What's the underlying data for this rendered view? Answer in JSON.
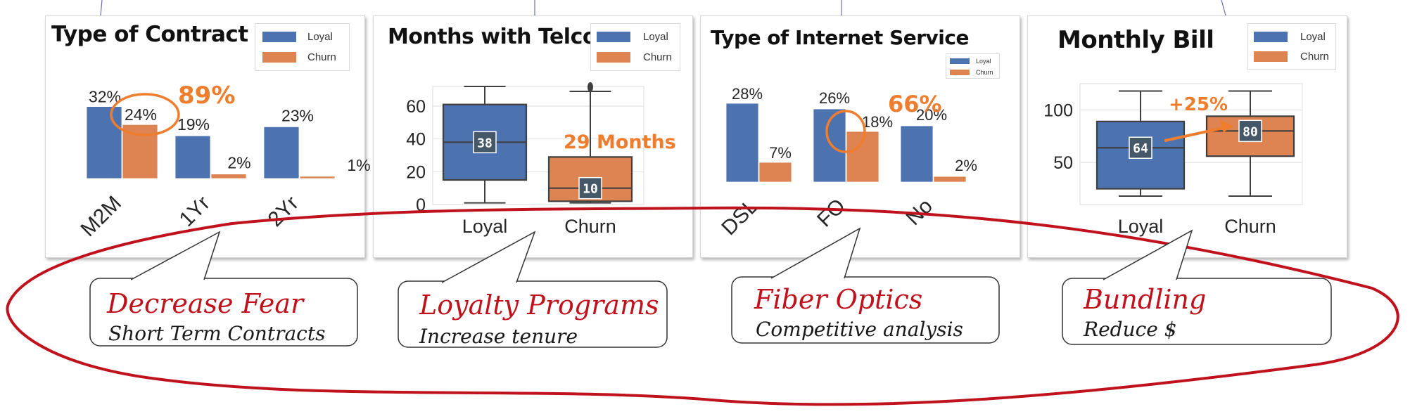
{
  "colors": {
    "loyal": "#4c72b0",
    "churn": "#dd8452",
    "highlight": "#ef7d2e",
    "ellipse": "#c0121c",
    "badge": "#455867"
  },
  "legend": {
    "loyal": "Loyal",
    "churn": "Churn"
  },
  "panels": [
    {
      "title": "Type of Contract"
    },
    {
      "title": "Months with Telco"
    },
    {
      "title": "Type of Internet Service"
    },
    {
      "title": "Monthly Bill"
    }
  ],
  "chart_data": [
    {
      "type": "bar",
      "title": "Type of Contract",
      "categories": [
        "M2M",
        "1Yr",
        "2Yr"
      ],
      "series": [
        {
          "name": "Loyal",
          "values": [
            32,
            19,
            23
          ],
          "labels": [
            "32%",
            "19%",
            "23%"
          ]
        },
        {
          "name": "Churn",
          "values": [
            24,
            2,
            1
          ],
          "labels": [
            "24%",
            "2%",
            "1%"
          ]
        }
      ],
      "annotation": "89%",
      "legend": "top-right"
    },
    {
      "type": "box",
      "title": "Months with Telco",
      "categories": [
        "Loyal",
        "Churn"
      ],
      "yticks": [
        "0",
        "20",
        "40",
        "60"
      ],
      "ylim": [
        0,
        72
      ],
      "boxes": [
        {
          "name": "Loyal",
          "min": 1,
          "q1": 15,
          "median": 38,
          "q3": 61,
          "max": 72,
          "median_label": "38"
        },
        {
          "name": "Churn",
          "min": 1,
          "q1": 2,
          "median": 10,
          "q3": 29,
          "max": 69,
          "median_label": "10"
        }
      ],
      "annotation": "29 Months",
      "legend": "top-right"
    },
    {
      "type": "bar",
      "title": "Type of Internet Service",
      "categories": [
        "DSL",
        "FO",
        "No"
      ],
      "series": [
        {
          "name": "Loyal",
          "values": [
            28,
            26,
            20
          ],
          "labels": [
            "28%",
            "26%",
            "20%"
          ]
        },
        {
          "name": "Churn",
          "values": [
            7,
            18,
            2
          ],
          "labels": [
            "7%",
            "18%",
            "2%"
          ]
        }
      ],
      "annotation": "66%",
      "legend": "top-right"
    },
    {
      "type": "box",
      "title": "Monthly Bill",
      "categories": [
        "Loyal",
        "Churn"
      ],
      "yticks": [
        "50",
        "100"
      ],
      "ylim": [
        10,
        125
      ],
      "boxes": [
        {
          "name": "Loyal",
          "min": 18,
          "q1": 25,
          "median": 64,
          "q3": 89,
          "max": 118,
          "median_label": "64"
        },
        {
          "name": "Churn",
          "min": 18,
          "q1": 56,
          "median": 80,
          "q3": 94,
          "max": 118,
          "median_label": "80"
        }
      ],
      "annotation": "+25%",
      "legend": "top-right"
    }
  ],
  "callouts": [
    {
      "heading": "Decrease Fear",
      "sub": "Short Term Contracts"
    },
    {
      "heading": "Loyalty Programs",
      "sub": "Increase tenure"
    },
    {
      "heading": "Fiber Optics",
      "sub": "Competitive analysis"
    },
    {
      "heading": "Bundling",
      "sub": "Reduce $"
    }
  ]
}
